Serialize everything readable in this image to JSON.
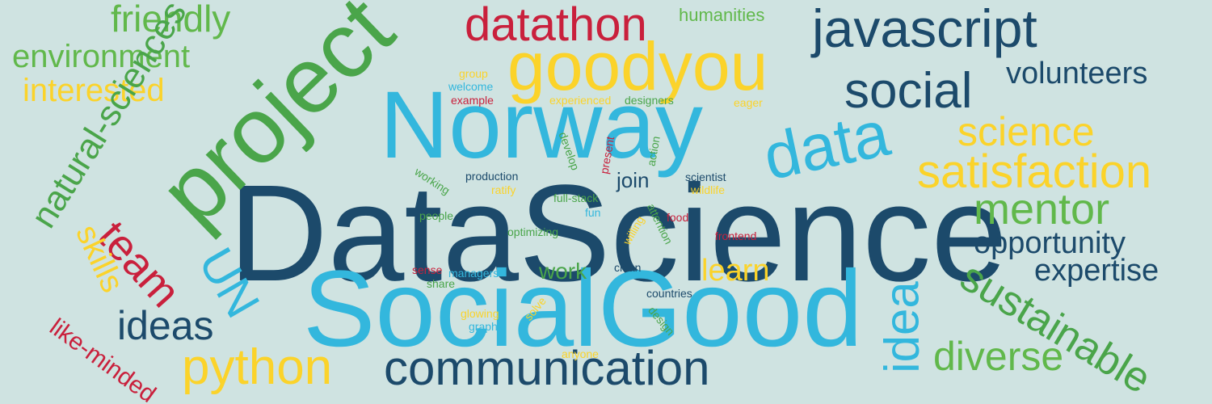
{
  "cloud": {
    "background": "#cfe3e1",
    "palette": {
      "navy": "#1c4a6b",
      "sky": "#33b7dd",
      "green": "#4aa54a",
      "lime": "#61b84b",
      "yellow": "#fbd32a",
      "red": "#c9203c"
    },
    "words": [
      {
        "text": "DataScience",
        "color": "navy"
      },
      {
        "text": "SocialGood",
        "color": "sky"
      },
      {
        "text": "Norway",
        "color": "sky"
      },
      {
        "text": "project",
        "color": "green"
      },
      {
        "text": "goodyou",
        "color": "yellow"
      },
      {
        "text": "javascript",
        "color": "navy"
      },
      {
        "text": "datathon",
        "color": "red"
      },
      {
        "text": "humanities",
        "color": "lime"
      },
      {
        "text": "friendly",
        "color": "lime"
      },
      {
        "text": "environment",
        "color": "lime"
      },
      {
        "text": "interested",
        "color": "yellow"
      },
      {
        "text": "natural-sciences",
        "color": "green"
      },
      {
        "text": "social",
        "color": "navy"
      },
      {
        "text": "volunteers",
        "color": "navy"
      },
      {
        "text": "data",
        "color": "sky"
      },
      {
        "text": "science",
        "color": "yellow"
      },
      {
        "text": "satisfaction",
        "color": "yellow"
      },
      {
        "text": "mentor",
        "color": "lime"
      },
      {
        "text": "opportunity",
        "color": "navy"
      },
      {
        "text": "expertise",
        "color": "navy"
      },
      {
        "text": "sustainable",
        "color": "green"
      },
      {
        "text": "diverse",
        "color": "lime"
      },
      {
        "text": "idea",
        "color": "sky"
      },
      {
        "text": "communication",
        "color": "navy"
      },
      {
        "text": "python",
        "color": "yellow"
      },
      {
        "text": "ideas",
        "color": "navy"
      },
      {
        "text": "UN",
        "color": "sky"
      },
      {
        "text": "team",
        "color": "red"
      },
      {
        "text": "skills",
        "color": "yellow"
      },
      {
        "text": "like-minded",
        "color": "red"
      },
      {
        "text": "learn",
        "color": "yellow"
      },
      {
        "text": "work",
        "color": "green"
      },
      {
        "text": "join",
        "color": "navy"
      },
      {
        "text": "group",
        "color": "yellow"
      },
      {
        "text": "welcome",
        "color": "sky"
      },
      {
        "text": "example",
        "color": "red"
      },
      {
        "text": "experienced",
        "color": "yellow"
      },
      {
        "text": "designers",
        "color": "green"
      },
      {
        "text": "eager",
        "color": "yellow"
      },
      {
        "text": "develop",
        "color": "green"
      },
      {
        "text": "present",
        "color": "red"
      },
      {
        "text": "action",
        "color": "green"
      },
      {
        "text": "scientist",
        "color": "navy"
      },
      {
        "text": "working",
        "color": "green"
      },
      {
        "text": "production",
        "color": "navy"
      },
      {
        "text": "ratify",
        "color": "yellow"
      },
      {
        "text": "full-stack",
        "color": "green"
      },
      {
        "text": "wildlife",
        "color": "yellow"
      },
      {
        "text": "people",
        "color": "green"
      },
      {
        "text": "fun",
        "color": "sky"
      },
      {
        "text": "attention",
        "color": "green"
      },
      {
        "text": "willing",
        "color": "yellow"
      },
      {
        "text": "food",
        "color": "red"
      },
      {
        "text": "optimizing",
        "color": "green"
      },
      {
        "text": "frontend",
        "color": "red"
      },
      {
        "text": "sense",
        "color": "red"
      },
      {
        "text": "managers",
        "color": "sky"
      },
      {
        "text": "clean",
        "color": "navy"
      },
      {
        "text": "share",
        "color": "green"
      },
      {
        "text": "countries",
        "color": "navy"
      },
      {
        "text": "glowing",
        "color": "yellow"
      },
      {
        "text": "solve",
        "color": "yellow"
      },
      {
        "text": "graphs",
        "color": "sky"
      },
      {
        "text": "design",
        "color": "green"
      },
      {
        "text": "anyone",
        "color": "yellow"
      }
    ]
  }
}
